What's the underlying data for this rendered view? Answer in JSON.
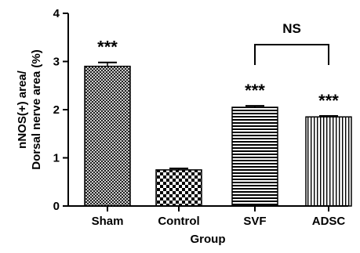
{
  "chart_data": {
    "type": "bar",
    "xlabel": "Group",
    "ylabel_lines": [
      "nNOS(+) area/",
      "Dorsal nerve area (%)"
    ],
    "ylim": [
      0,
      4
    ],
    "yticks": [
      "0",
      "1",
      "2",
      "3",
      "4"
    ],
    "categories": [
      "Sham",
      "Control",
      "SVF",
      "ADSC"
    ],
    "values": [
      2.9,
      0.75,
      2.05,
      1.85
    ],
    "errors": [
      0.08,
      0.03,
      0.03,
      0.02
    ],
    "patterns": [
      "crosshatch",
      "checker",
      "horizontal-lines",
      "vertical-lines"
    ],
    "significance": [
      "***",
      "",
      "***",
      "***"
    ],
    "comparison": {
      "label": "NS",
      "between": [
        "SVF",
        "ADSC"
      ]
    },
    "grid": false
  }
}
